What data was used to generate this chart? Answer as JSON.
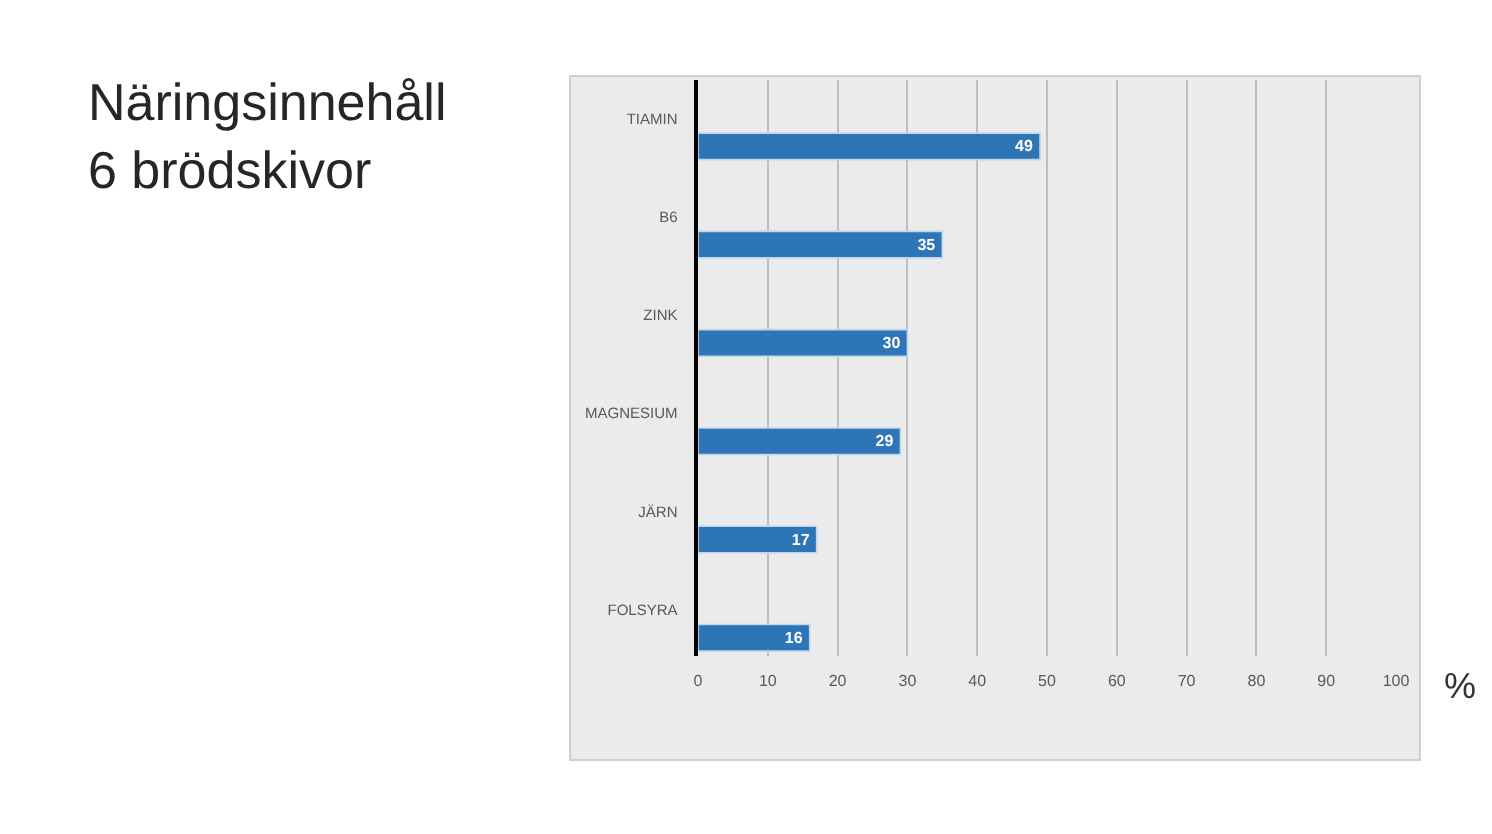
{
  "chart_data": {
    "type": "bar",
    "orientation": "horizontal",
    "title": "Näringsinnehåll\n6 brödskivor",
    "xlabel": "%",
    "categories": [
      "TIAMIN",
      "B6",
      "ZINK",
      "MAGNESIUM",
      "JÄRN",
      "FOLSYRA"
    ],
    "values": [
      49,
      35,
      30,
      29,
      17,
      16
    ],
    "color": "#2e75b6",
    "xlim": [
      0,
      100
    ],
    "xticks": [
      0,
      10,
      20,
      30,
      40,
      50,
      60,
      70,
      80,
      90,
      100
    ],
    "grid": "x",
    "data_labels": true
  }
}
